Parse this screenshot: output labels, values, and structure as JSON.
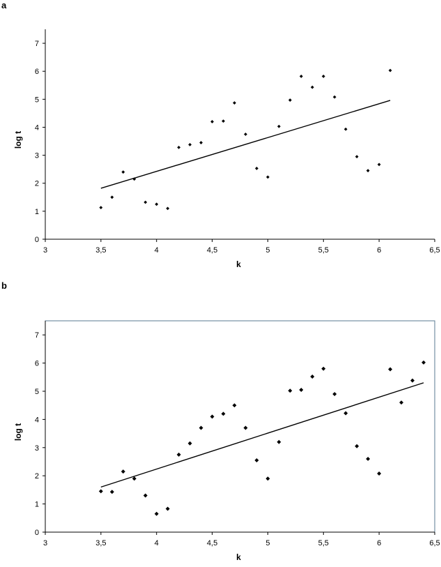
{
  "chart_data": [
    {
      "panel": "a",
      "type": "scatter",
      "xlabel": "k",
      "ylabel": "log t",
      "xlim": [
        3,
        6.5
      ],
      "ylim": [
        0,
        7.5
      ],
      "x_ticks": [
        "3",
        "3,5",
        "4",
        "4,5",
        "5",
        "5,5",
        "6",
        "6,5"
      ],
      "y_ticks": [
        "0",
        "1",
        "2",
        "3",
        "4",
        "5",
        "6",
        "7"
      ],
      "grid": false,
      "plot_border": "left-bottom",
      "x": [
        3.5,
        3.6,
        3.7,
        3.8,
        3.9,
        4.0,
        4.1,
        4.2,
        4.3,
        4.4,
        4.5,
        4.6,
        4.7,
        4.8,
        4.9,
        5.0,
        5.1,
        5.2,
        5.3,
        5.4,
        5.5,
        5.6,
        5.7,
        5.8,
        5.9,
        6.0,
        6.1
      ],
      "y": [
        1.13,
        1.5,
        2.4,
        2.15,
        1.32,
        1.25,
        1.1,
        3.28,
        3.38,
        3.45,
        4.2,
        4.22,
        4.87,
        3.75,
        2.53,
        2.22,
        4.03,
        4.97,
        5.82,
        5.43,
        5.82,
        5.08,
        3.93,
        2.95,
        2.45,
        2.67,
        6.03
      ],
      "trendline": {
        "x": [
          3.5,
          6.1
        ],
        "y": [
          1.82,
          4.96
        ]
      }
    },
    {
      "panel": "b",
      "type": "scatter",
      "xlabel": "k",
      "ylabel": "log t",
      "xlim": [
        3,
        6.5
      ],
      "ylim": [
        0,
        7.5
      ],
      "x_ticks": [
        "3",
        "3,5",
        "4",
        "4,5",
        "5",
        "5,5",
        "6",
        "6,5"
      ],
      "y_ticks": [
        "0",
        "1",
        "2",
        "3",
        "4",
        "5",
        "6",
        "7"
      ],
      "grid": false,
      "plot_border": "full",
      "x": [
        3.5,
        3.6,
        3.7,
        3.8,
        3.9,
        4.0,
        4.1,
        4.2,
        4.3,
        4.4,
        4.5,
        4.6,
        4.7,
        4.8,
        4.9,
        5.0,
        5.1,
        5.2,
        5.3,
        5.4,
        5.5,
        5.6,
        5.7,
        5.8,
        5.9,
        6.0,
        6.1,
        6.2,
        6.3,
        6.4
      ],
      "y": [
        1.45,
        1.43,
        2.15,
        1.9,
        1.3,
        0.65,
        0.83,
        2.75,
        3.15,
        3.7,
        4.1,
        4.2,
        4.5,
        3.7,
        2.55,
        1.9,
        3.2,
        5.02,
        5.05,
        5.52,
        5.8,
        4.9,
        4.22,
        3.05,
        2.6,
        2.08,
        5.78,
        4.6,
        5.38,
        6.02
      ],
      "trendline": {
        "x": [
          3.5,
          6.4
        ],
        "y": [
          1.6,
          5.3
        ]
      }
    }
  ],
  "panels": {
    "a": "a",
    "b": "b"
  }
}
